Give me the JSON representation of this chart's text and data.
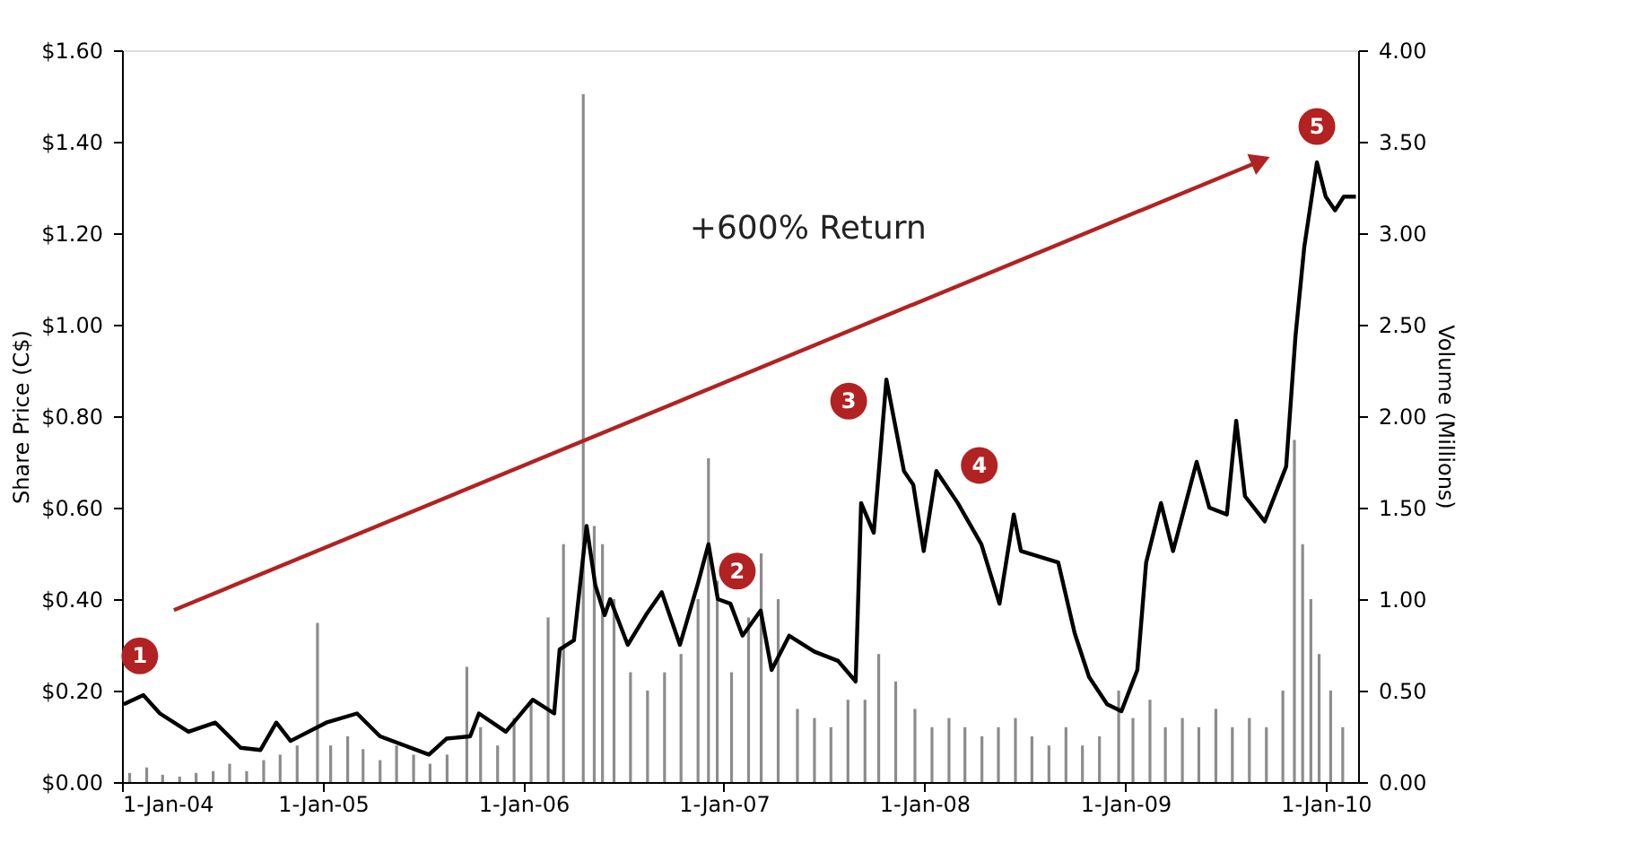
{
  "chart_data": {
    "type": "line",
    "ylabel": "Share Price (C$)",
    "y2label": "Volume (Millions)",
    "xlim": [
      "2004-01-01",
      "2010-03-01"
    ],
    "ylim": [
      0,
      1.6
    ],
    "y2lim": [
      0,
      4
    ],
    "xticks": [
      {
        "value": "2004-01-01",
        "label": "1-Jan-04"
      },
      {
        "value": "2005-01-01",
        "label": "1-Jan-05"
      },
      {
        "value": "2006-01-01",
        "label": "1-Jan-06"
      },
      {
        "value": "2007-01-01",
        "label": "1-Jan-07"
      },
      {
        "value": "2008-01-01",
        "label": "1-Jan-08"
      },
      {
        "value": "2009-01-01",
        "label": "1-Jan-09"
      },
      {
        "value": "2010-01-01",
        "label": "1-Jan-10"
      }
    ],
    "yticks": [
      {
        "value": 0,
        "label": "$0.00"
      },
      {
        "value": 0.2,
        "label": "$0.20"
      },
      {
        "value": 0.4,
        "label": "$0.40"
      },
      {
        "value": 0.6,
        "label": "$0.60"
      },
      {
        "value": 0.8,
        "label": "$0.80"
      },
      {
        "value": 1.0,
        "label": "$1.00"
      },
      {
        "value": 1.2,
        "label": "$1.20"
      },
      {
        "value": 1.4,
        "label": "$1.40"
      },
      {
        "value": 1.6,
        "label": "$1.60"
      }
    ],
    "y2ticks": [
      {
        "value": 0,
        "label": "0.00"
      },
      {
        "value": 0.5,
        "label": "0.50"
      },
      {
        "value": 1.0,
        "label": "1.00"
      },
      {
        "value": 1.5,
        "label": "1.50"
      },
      {
        "value": 2.0,
        "label": "2.00"
      },
      {
        "value": 2.5,
        "label": "2.50"
      },
      {
        "value": 3.0,
        "label": "3.00"
      },
      {
        "value": 3.5,
        "label": "3.50"
      },
      {
        "value": 4.0,
        "label": "4.00"
      }
    ],
    "grid": false,
    "marker": "none",
    "line_style": "solid",
    "series": [
      {
        "type": "bar",
        "axis": "y2",
        "color": "#8c8c8c",
        "x": [
          "2004-01-15",
          "2004-02-15",
          "2004-03-15",
          "2004-04-15",
          "2004-05-15",
          "2004-06-15",
          "2004-07-15",
          "2004-08-15",
          "2004-09-15",
          "2004-10-15",
          "2004-11-15",
          "2004-12-22",
          "2005-01-15",
          "2005-02-15",
          "2005-03-15",
          "2005-04-15",
          "2005-05-15",
          "2005-06-15",
          "2005-07-15",
          "2005-08-15",
          "2005-09-20",
          "2005-10-15",
          "2005-11-15",
          "2005-12-15",
          "2006-01-15",
          "2006-02-15",
          "2006-03-15",
          "2006-04-20",
          "2006-05-10",
          "2006-05-25",
          "2006-06-15",
          "2006-07-15",
          "2006-08-15",
          "2006-09-15",
          "2006-10-15",
          "2006-11-15",
          "2006-12-04",
          "2006-12-20",
          "2007-01-15",
          "2007-02-15",
          "2007-03-10",
          "2007-04-10",
          "2007-05-15",
          "2007-06-15",
          "2007-07-15",
          "2007-08-15",
          "2007-09-15",
          "2007-10-10",
          "2007-11-10",
          "2007-12-15",
          "2008-01-15",
          "2008-02-15",
          "2008-03-15",
          "2008-04-15",
          "2008-05-15",
          "2008-06-15",
          "2008-07-15",
          "2008-08-15",
          "2008-09-15",
          "2008-10-15",
          "2008-11-15",
          "2008-12-20",
          "2009-01-15",
          "2009-02-15",
          "2009-03-15",
          "2009-04-15",
          "2009-05-15",
          "2009-06-15",
          "2009-07-15",
          "2009-08-15",
          "2009-09-15",
          "2009-10-15",
          "2009-11-05",
          "2009-11-20",
          "2009-12-05",
          "2009-12-20",
          "2010-01-10",
          "2010-02-01"
        ],
        "values": [
          0.05,
          0.08,
          0.04,
          0.03,
          0.05,
          0.06,
          0.1,
          0.06,
          0.12,
          0.15,
          0.2,
          0.87,
          0.2,
          0.25,
          0.18,
          0.12,
          0.2,
          0.15,
          0.1,
          0.15,
          0.63,
          0.3,
          0.2,
          0.35,
          0.45,
          0.9,
          1.3,
          3.76,
          1.4,
          1.3,
          1.0,
          0.6,
          0.5,
          0.6,
          0.7,
          1.0,
          1.77,
          1.1,
          0.6,
          0.9,
          1.25,
          1.0,
          0.4,
          0.35,
          0.3,
          0.45,
          0.45,
          0.7,
          0.55,
          0.4,
          0.3,
          0.35,
          0.3,
          0.25,
          0.3,
          0.35,
          0.25,
          0.2,
          0.3,
          0.2,
          0.25,
          0.5,
          0.35,
          0.45,
          0.3,
          0.35,
          0.3,
          0.4,
          0.3,
          0.35,
          0.3,
          0.5,
          1.87,
          1.3,
          1.0,
          0.7,
          0.5,
          0.3
        ]
      },
      {
        "color": "#000000",
        "x": [
          "2004-01-04",
          "2004-02-09",
          "2004-03-10",
          "2004-05-01",
          "2004-06-19",
          "2004-08-04",
          "2004-09-09",
          "2004-10-08",
          "2004-11-03",
          "2005-01-07",
          "2005-03-04",
          "2005-04-15",
          "2005-07-13",
          "2005-08-14",
          "2005-09-26",
          "2005-10-12",
          "2005-11-30",
          "2006-01-18",
          "2006-02-26",
          "2006-03-08",
          "2006-04-03",
          "2006-04-26",
          "2006-05-12",
          "2006-05-29",
          "2006-06-08",
          "2006-07-10",
          "2006-08-12",
          "2006-09-10",
          "2006-10-13",
          "2006-11-15",
          "2006-12-04",
          "2006-12-21",
          "2007-01-13",
          "2007-02-04",
          "2007-03-09",
          "2007-03-29",
          "2007-04-30",
          "2007-06-15",
          "2007-07-28",
          "2007-08-29",
          "2007-09-08",
          "2007-10-01",
          "2007-10-24",
          "2007-11-25",
          "2007-12-12",
          "2007-12-31",
          "2008-01-23",
          "2008-03-02",
          "2008-04-14",
          "2008-05-17",
          "2008-06-12",
          "2008-06-25",
          "2008-09-01",
          "2008-10-01",
          "2008-10-27",
          "2008-11-29",
          "2008-12-25",
          "2009-01-23",
          "2009-02-08",
          "2009-03-07",
          "2009-03-29",
          "2009-05-11",
          "2009-06-03",
          "2009-07-05",
          "2009-07-22",
          "2009-08-07",
          "2009-09-12",
          "2009-10-21",
          "2009-11-07",
          "2009-11-23",
          "2009-12-16",
          "2010-01-01",
          "2010-01-18",
          "2010-02-03",
          "2010-02-25"
        ],
        "values": [
          0.17,
          0.19,
          0.15,
          0.11,
          0.13,
          0.075,
          0.07,
          0.13,
          0.09,
          0.13,
          0.15,
          0.1,
          0.06,
          0.095,
          0.1,
          0.15,
          0.11,
          0.18,
          0.15,
          0.29,
          0.31,
          0.56,
          0.43,
          0.365,
          0.4,
          0.3,
          0.365,
          0.415,
          0.3,
          0.435,
          0.52,
          0.4,
          0.39,
          0.32,
          0.375,
          0.245,
          0.32,
          0.285,
          0.265,
          0.22,
          0.61,
          0.545,
          0.88,
          0.68,
          0.65,
          0.505,
          0.68,
          0.61,
          0.52,
          0.39,
          0.585,
          0.505,
          0.48,
          0.325,
          0.23,
          0.17,
          0.155,
          0.245,
          0.48,
          0.61,
          0.505,
          0.7,
          0.6,
          0.585,
          0.79,
          0.625,
          0.57,
          0.69,
          0.975,
          1.17,
          1.355,
          1.28,
          1.25,
          1.28,
          1.28
        ]
      }
    ],
    "annotations": [
      "+600% Return",
      {
        "text": "1",
        "x": "2004-01-04",
        "y": 0.17
      },
      {
        "text": "2",
        "x": "2007-03-09",
        "y": 0.375
      },
      {
        "text": "3",
        "x": "2007-10-24",
        "y": 0.88
      },
      {
        "text": "4",
        "x": "2008-03-02",
        "y": 0.61
      },
      {
        "text": "5",
        "x": "2009-12-16",
        "y": 1.355
      }
    ]
  }
}
